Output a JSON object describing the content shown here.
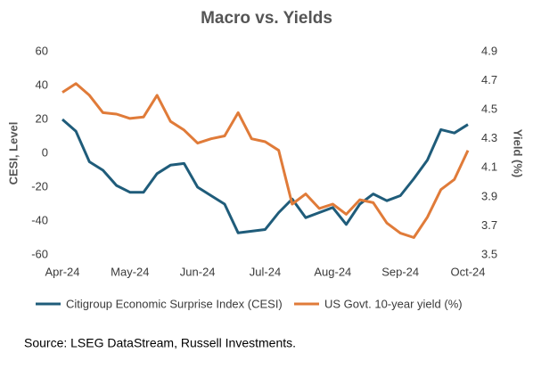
{
  "chart_data": {
    "type": "line",
    "title": "Macro vs. Yields",
    "y_label": "CESI, Level",
    "y2_label": "Yield (%)",
    "categories": [
      "Apr-24",
      null,
      null,
      null,
      null,
      "May-24",
      null,
      null,
      null,
      null,
      "Jun-24",
      null,
      null,
      null,
      null,
      "Jul-24",
      null,
      null,
      null,
      null,
      "Aug-24",
      null,
      null,
      null,
      null,
      "Sep-24",
      null,
      null,
      null,
      null,
      "Oct-24"
    ],
    "series": [
      {
        "name": "Citigroup Economic Surprise Index (CESI)",
        "color": "#1f5c7a",
        "axis": "y",
        "values": [
          20,
          13,
          -5,
          -10,
          -19,
          -23,
          -23,
          -12,
          -7,
          -6,
          -20,
          -25,
          -30,
          -47,
          -46,
          -45,
          -35,
          -27,
          -38,
          -35,
          -32,
          -42,
          -30,
          -24,
          -28,
          -25,
          -15,
          -4,
          14,
          12,
          17
        ]
      },
      {
        "name": "US Govt. 10-year yield (%)",
        "color": "#e07b39",
        "axis": "y2",
        "values": [
          4.62,
          4.68,
          4.6,
          4.48,
          4.47,
          4.44,
          4.45,
          4.6,
          4.42,
          4.36,
          4.27,
          4.3,
          4.32,
          4.48,
          4.3,
          4.28,
          4.22,
          3.85,
          3.92,
          3.82,
          3.85,
          3.78,
          3.88,
          3.86,
          3.72,
          3.65,
          3.62,
          3.76,
          3.95,
          4.02,
          4.22
        ]
      }
    ],
    "ylim": [
      -60,
      60
    ],
    "yticks": [
      -60,
      -40,
      -20,
      0,
      20,
      40,
      60
    ],
    "y2lim": [
      3.5,
      4.9
    ],
    "y2ticks": [
      3.5,
      3.7,
      3.9,
      4.1,
      4.3,
      4.5,
      4.7,
      4.9
    ],
    "grid": false,
    "source": "Source: LSEG DataStream, Russell Investments."
  }
}
